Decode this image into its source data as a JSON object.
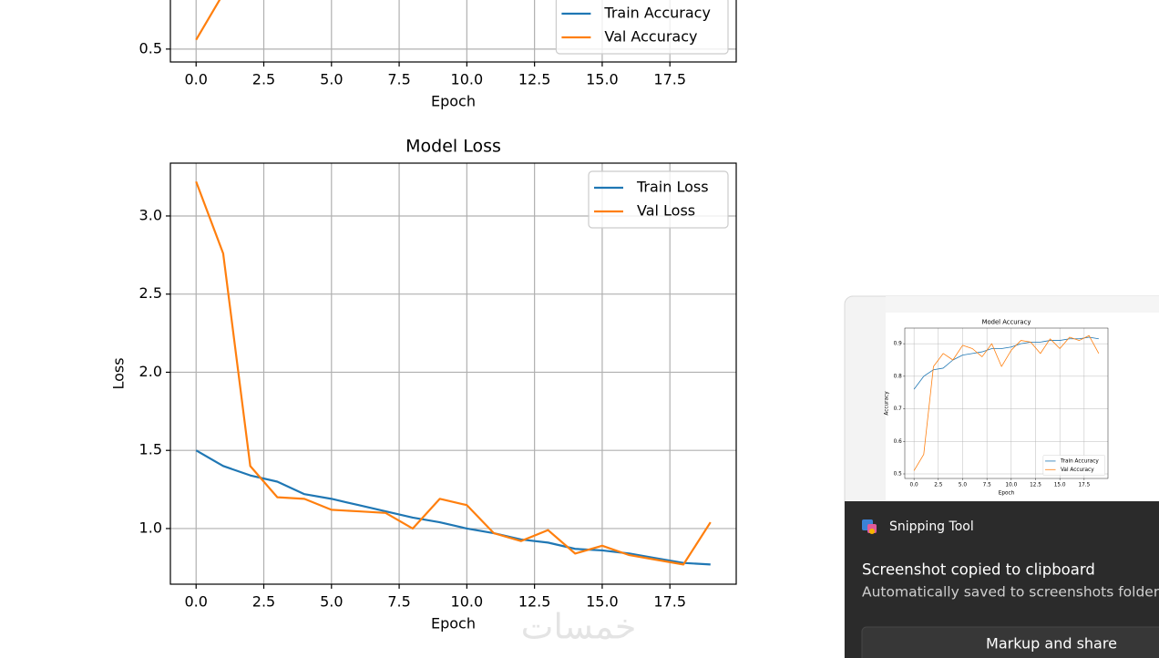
{
  "chart_data": [
    {
      "type": "line",
      "title": "Model Accuracy",
      "xlabel": "Epoch",
      "ylabel": "Accuracy",
      "x": [
        0,
        1,
        2,
        3,
        4,
        5,
        6,
        7,
        8,
        9,
        10,
        11,
        12,
        13,
        14,
        15,
        16,
        17,
        18,
        19
      ],
      "series": [
        {
          "name": "Train Accuracy",
          "color": "#1f77b4",
          "values": [
            0.76,
            0.8,
            0.82,
            0.825,
            0.85,
            0.865,
            0.87,
            0.875,
            0.885,
            0.885,
            0.89,
            0.9,
            0.905,
            0.905,
            0.91,
            0.91,
            0.915,
            0.915,
            0.92,
            0.915
          ]
        },
        {
          "name": "Val Accuracy",
          "color": "#ff7f0e",
          "values": [
            0.51,
            0.56,
            0.83,
            0.87,
            0.85,
            0.895,
            0.885,
            0.86,
            0.9,
            0.83,
            0.88,
            0.91,
            0.905,
            0.87,
            0.915,
            0.885,
            0.92,
            0.91,
            0.925,
            0.87
          ]
        }
      ],
      "xlim": [
        -0.95,
        19.95
      ],
      "ylim": [
        0.486,
        0.948
      ],
      "xticks": [
        {
          "value": 0,
          "label": "0.0"
        },
        2.5,
        {
          "value": 5,
          "label": "5.0"
        },
        7.5,
        {
          "value": 10,
          "label": "10.0"
        },
        12.5,
        {
          "value": 15,
          "label": "15.0"
        },
        17.5
      ],
      "yticks": [
        0.5,
        0.6,
        0.7,
        0.8,
        0.9
      ],
      "grid": true,
      "legend": "lower right"
    },
    {
      "type": "line",
      "title": "Model Loss",
      "xlabel": "Epoch",
      "ylabel": "Loss",
      "x": [
        0,
        1,
        2,
        3,
        4,
        5,
        6,
        7,
        8,
        9,
        10,
        11,
        12,
        13,
        14,
        15,
        16,
        17,
        18,
        19
      ],
      "series": [
        {
          "name": "Train Loss",
          "color": "#1f77b4",
          "values": [
            1.5,
            1.4,
            1.34,
            1.3,
            1.22,
            1.19,
            1.15,
            1.11,
            1.07,
            1.04,
            1.0,
            0.97,
            0.93,
            0.91,
            0.87,
            0.86,
            0.84,
            0.81,
            0.78,
            0.77
          ]
        },
        {
          "name": "Val Loss",
          "color": "#ff7f0e",
          "values": [
            3.22,
            2.76,
            1.4,
            1.2,
            1.19,
            1.12,
            1.11,
            1.1,
            1.0,
            1.19,
            1.15,
            0.97,
            0.92,
            0.99,
            0.84,
            0.89,
            0.83,
            0.8,
            0.77,
            1.04
          ]
        }
      ],
      "xlim": [
        -0.95,
        19.95
      ],
      "ylim": [
        0.644,
        3.338
      ],
      "xticks": [
        {
          "value": 0,
          "label": "0.0"
        },
        2.5,
        {
          "value": 5,
          "label": "5.0"
        },
        7.5,
        {
          "value": 10,
          "label": "10.0"
        },
        12.5,
        {
          "value": 15,
          "label": "15.0"
        },
        17.5
      ],
      "yticks": [
        {
          "value": 1,
          "label": "1.0"
        },
        1.5,
        {
          "value": 2,
          "label": "2.0"
        },
        2.5,
        {
          "value": 3,
          "label": "3.0"
        }
      ],
      "grid": true,
      "legend": "upper right"
    }
  ],
  "notification": {
    "app": "Snipping Tool",
    "title": "Screenshot copied to clipboard",
    "message": "Automatically saved to screenshots folder.",
    "button": "Markup and share"
  },
  "watermark": "خمسات"
}
